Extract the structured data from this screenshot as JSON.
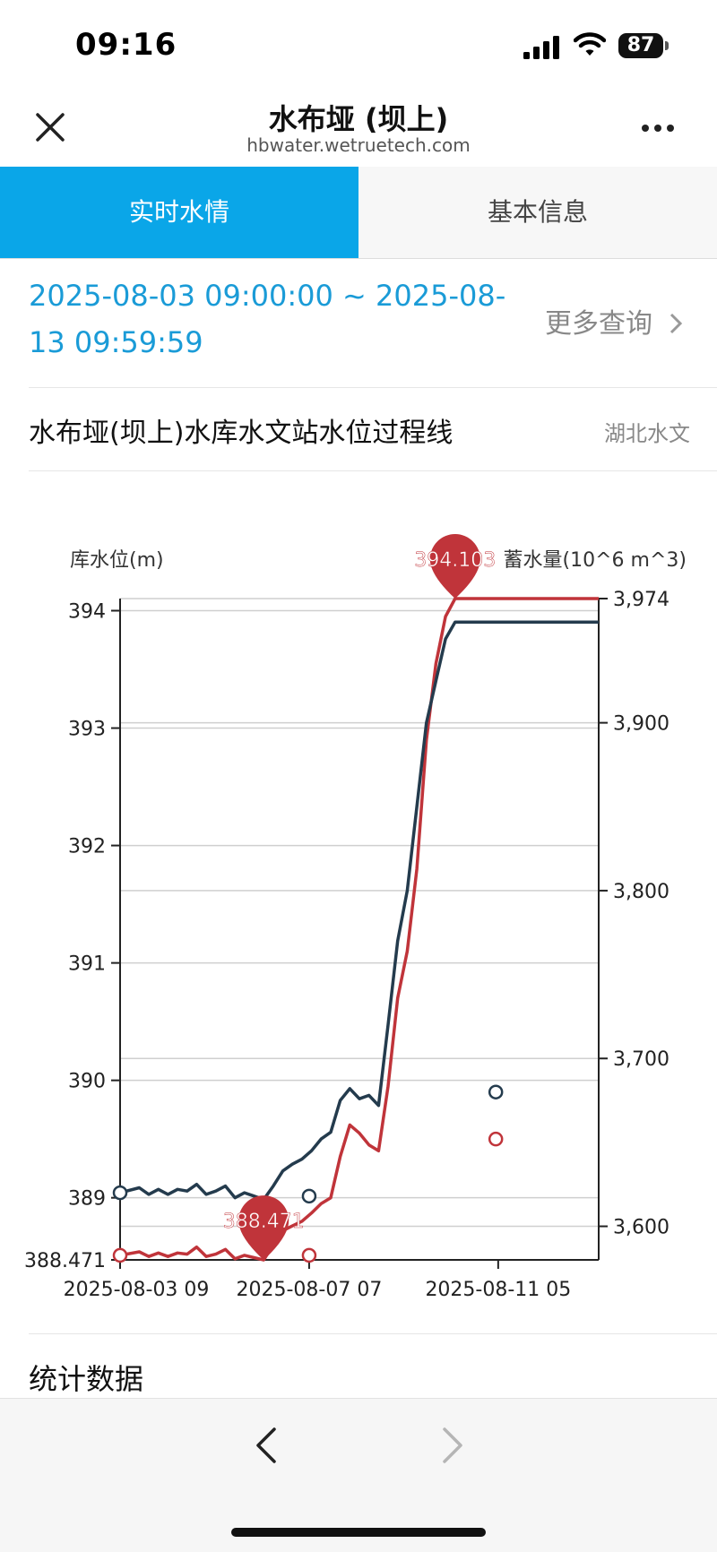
{
  "status": {
    "time": "09:16",
    "battery": "87"
  },
  "nav": {
    "title": "水布垭 (坝上)",
    "domain": "hbwater.wetruetech.com"
  },
  "tabs": [
    {
      "label": "实时水情",
      "active": true
    },
    {
      "label": "基本信息",
      "active": false
    }
  ],
  "query": {
    "date_range_line1": "2025-08-03 09:00:00 ~ 2025-08-",
    "date_range_line2": "13 09:59:59",
    "more_label": "更多查询"
  },
  "chart_section": {
    "title": "水布垭(坝上)水库水文站水位过程线",
    "source": "湖北水文"
  },
  "chart_data": {
    "type": "line",
    "ylabel_left": "库水位(m)",
    "ylabel_right": "蓄水量(10^6 m^3)",
    "ylim_left": [
      388.471,
      394.103
    ],
    "ylim_right": [
      3580,
      3974
    ],
    "yticks_left": [
      "388.471",
      "389",
      "390",
      "391",
      "392",
      "393",
      "394"
    ],
    "yticks_right": [
      "3,600",
      "3,700",
      "3,800",
      "3,900",
      "3,974"
    ],
    "xticks": [
      "2025-08-03 09",
      "2025-08-07 07",
      "2025-08-11 05"
    ],
    "series": [
      {
        "name": "库水位",
        "color": "#c0343a",
        "axis": "left",
        "x": [
          0,
          4,
          6,
          8,
          10,
          12,
          14,
          16,
          18,
          20,
          22,
          24,
          26,
          28,
          30,
          32,
          34,
          36,
          38,
          40,
          42,
          44,
          46,
          48,
          50,
          52,
          54,
          56,
          58,
          60,
          62,
          64,
          66,
          68,
          70,
          72,
          74,
          76,
          78,
          80,
          82,
          84,
          86,
          88,
          90,
          92,
          94,
          96,
          98,
          100
        ],
        "y": [
          388.51,
          388.54,
          388.5,
          388.53,
          388.5,
          388.53,
          388.52,
          388.58,
          388.5,
          388.52,
          388.56,
          388.48,
          388.51,
          388.49,
          388.47,
          388.6,
          388.72,
          388.76,
          388.8,
          388.87,
          388.95,
          389.0,
          389.35,
          389.62,
          389.55,
          389.45,
          389.4,
          389.95,
          390.7,
          391.1,
          391.8,
          392.9,
          393.55,
          393.95,
          394.103,
          394.103,
          394.103,
          394.103,
          394.103,
          394.103,
          394.103,
          394.103,
          394.103,
          394.103,
          394.103,
          394.103,
          394.103,
          394.103,
          394.103,
          394.103
        ],
        "markers": [
          {
            "x": 0,
            "y": 388.51
          },
          {
            "x": 39.5,
            "y": 388.51
          },
          {
            "x": 78.5,
            "y": 389.5
          }
        ],
        "min_label": "388.471",
        "max_label": "394.103"
      },
      {
        "name": "蓄水量",
        "color": "#243b4d",
        "axis": "right",
        "x": [
          0,
          4,
          6,
          8,
          10,
          12,
          14,
          16,
          18,
          20,
          22,
          24,
          26,
          28,
          30,
          32,
          34,
          36,
          38,
          40,
          42,
          44,
          46,
          48,
          50,
          52,
          54,
          56,
          58,
          60,
          62,
          64,
          66,
          68,
          70,
          72,
          74,
          76,
          78,
          80,
          82,
          84,
          86,
          88,
          90,
          92,
          94,
          96,
          98,
          100
        ],
        "y": [
          3620,
          3623,
          3619,
          3622,
          3619,
          3622,
          3621,
          3625,
          3619,
          3621,
          3624,
          3617,
          3620,
          3618,
          3616,
          3624,
          3633,
          3637,
          3640,
          3645,
          3652,
          3656,
          3675,
          3682,
          3676,
          3678,
          3672,
          3720,
          3770,
          3800,
          3850,
          3900,
          3925,
          3950,
          3960,
          3960,
          3960,
          3960,
          3960,
          3960,
          3960,
          3960,
          3960,
          3960,
          3960,
          3960,
          3960,
          3960,
          3960,
          3960
        ],
        "markers": [
          {
            "x": 0,
            "y": 3620
          },
          {
            "x": 39.5,
            "y": 3618
          },
          {
            "x": 78.5,
            "y": 3680
          }
        ]
      }
    ],
    "grid": true
  },
  "stats": {
    "title": "统计数据"
  }
}
